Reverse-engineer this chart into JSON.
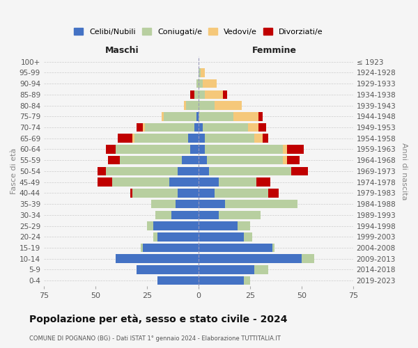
{
  "age_groups": [
    "0-4",
    "5-9",
    "10-14",
    "15-19",
    "20-24",
    "25-29",
    "30-34",
    "35-39",
    "40-44",
    "45-49",
    "50-54",
    "55-59",
    "60-64",
    "65-69",
    "70-74",
    "75-79",
    "80-84",
    "85-89",
    "90-94",
    "95-99",
    "100+"
  ],
  "birth_years": [
    "2019-2023",
    "2014-2018",
    "2009-2013",
    "2004-2008",
    "1999-2003",
    "1994-1998",
    "1989-1993",
    "1984-1988",
    "1979-1983",
    "1974-1978",
    "1969-1973",
    "1964-1968",
    "1959-1963",
    "1954-1958",
    "1949-1953",
    "1944-1948",
    "1939-1943",
    "1934-1938",
    "1929-1933",
    "1924-1928",
    "≤ 1923"
  ],
  "male": {
    "celibi": [
      20,
      30,
      40,
      27,
      20,
      22,
      13,
      11,
      10,
      14,
      10,
      8,
      4,
      5,
      2,
      1,
      0,
      0,
      0,
      0,
      0
    ],
    "coniugati": [
      0,
      0,
      0,
      1,
      2,
      3,
      8,
      12,
      22,
      28,
      35,
      30,
      36,
      26,
      24,
      16,
      6,
      2,
      1,
      0,
      0
    ],
    "vedovi": [
      0,
      0,
      0,
      0,
      0,
      0,
      0,
      0,
      0,
      0,
      0,
      0,
      0,
      1,
      1,
      1,
      1,
      0,
      0,
      0,
      0
    ],
    "divorziati": [
      0,
      0,
      0,
      0,
      0,
      0,
      0,
      0,
      1,
      7,
      4,
      6,
      5,
      7,
      3,
      0,
      0,
      2,
      0,
      0,
      0
    ]
  },
  "female": {
    "nubili": [
      22,
      27,
      50,
      36,
      22,
      19,
      10,
      13,
      8,
      10,
      5,
      4,
      3,
      3,
      2,
      0,
      0,
      0,
      0,
      0,
      0
    ],
    "coniugate": [
      3,
      7,
      6,
      1,
      4,
      6,
      20,
      35,
      26,
      18,
      40,
      37,
      38,
      24,
      22,
      17,
      8,
      3,
      2,
      1,
      0
    ],
    "vedove": [
      0,
      0,
      0,
      0,
      0,
      0,
      0,
      0,
      0,
      0,
      0,
      2,
      2,
      4,
      5,
      12,
      13,
      9,
      7,
      2,
      0
    ],
    "divorziate": [
      0,
      0,
      0,
      0,
      0,
      0,
      0,
      0,
      5,
      7,
      8,
      6,
      8,
      3,
      4,
      2,
      0,
      2,
      0,
      0,
      0
    ]
  },
  "colors": {
    "celibi": "#4472c4",
    "coniugati": "#b8cfa0",
    "vedovi": "#f5c87a",
    "divorziati": "#c00000"
  },
  "xlim": 75,
  "title": "Popolazione per età, sesso e stato civile - 2024",
  "subtitle": "COMUNE DI POGNANO (BG) - Dati ISTAT 1° gennaio 2024 - Elaborazione TUTTITALIA.IT",
  "xlabel_left": "Maschi",
  "xlabel_right": "Femmine",
  "ylabel_left": "Fasce di età",
  "ylabel_right": "Anni di nascita",
  "legend_labels": [
    "Celibi/Nubili",
    "Coniugati/e",
    "Vedovi/e",
    "Divorziati/e"
  ],
  "bg_color": "#f5f5f5"
}
